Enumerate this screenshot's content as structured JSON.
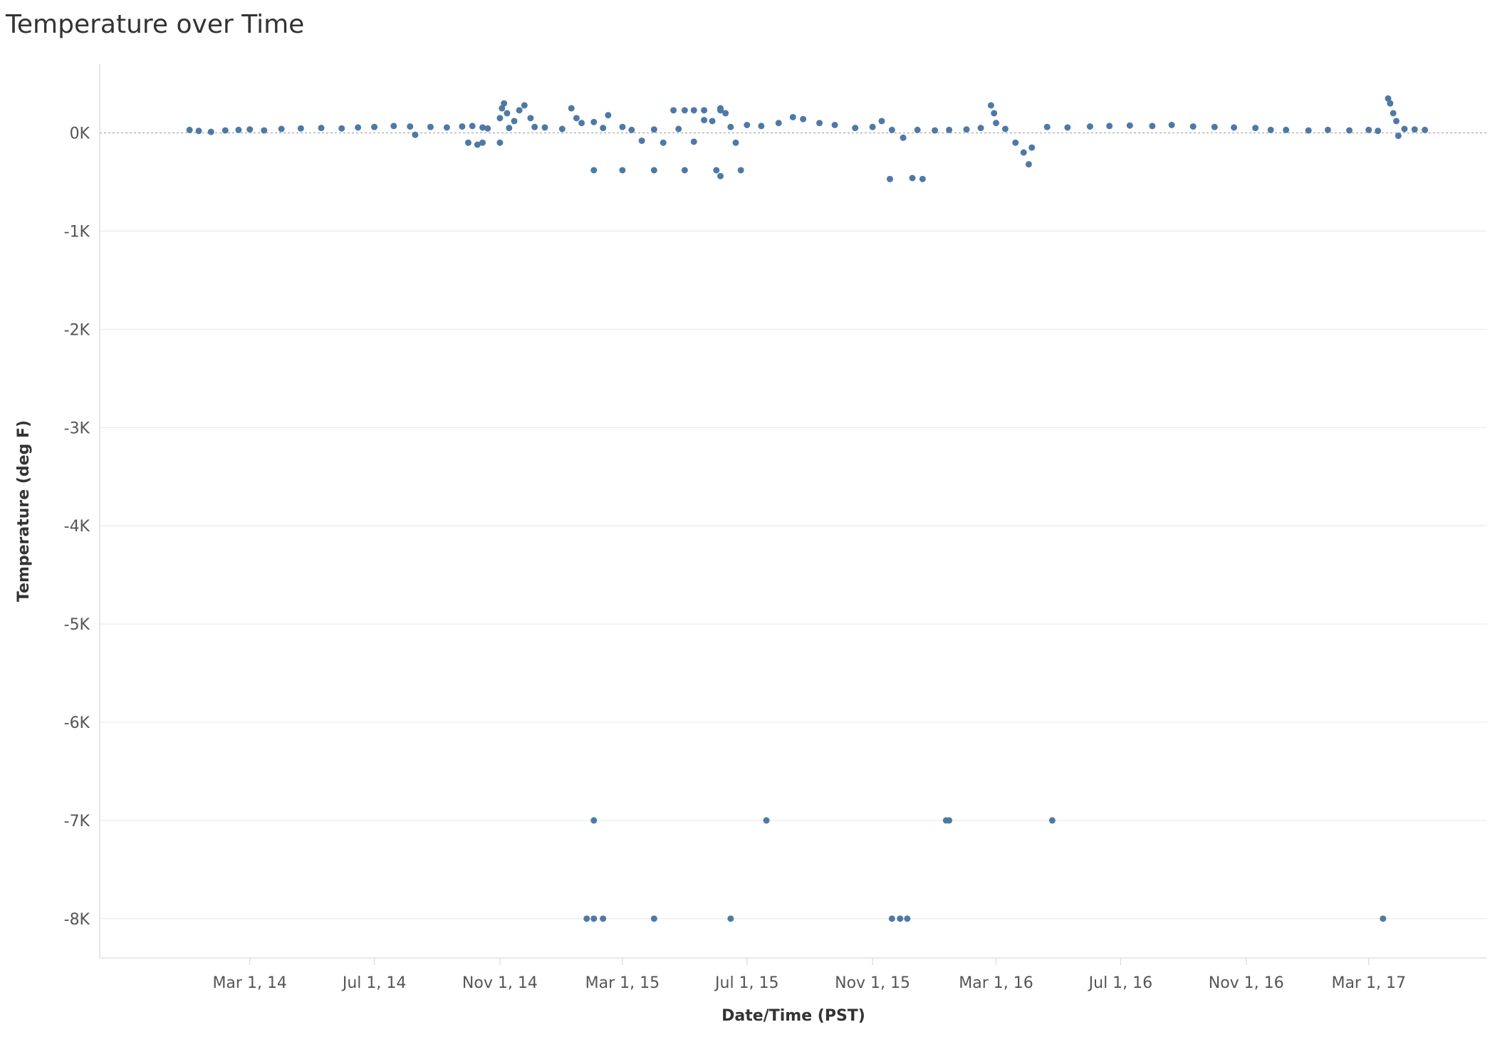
{
  "chart_data": {
    "type": "scatter",
    "title": "Temperature over Time",
    "xlabel": "Date/Time (PST)",
    "ylabel": "Temperature (deg F)",
    "xlim": [
      "2013-10-05",
      "2017-06-25"
    ],
    "ylim": [
      -8400,
      700
    ],
    "x_tick_values": [
      "2014-03-01",
      "2014-07-01",
      "2014-11-01",
      "2015-03-01",
      "2015-07-01",
      "2015-11-01",
      "2016-03-01",
      "2016-07-01",
      "2016-11-01",
      "2017-03-01"
    ],
    "x_tick_labels": [
      "Mar 1, 14",
      "Jul 1, 14",
      "Nov 1, 14",
      "Mar 1, 15",
      "Jul 1, 15",
      "Nov 1, 15",
      "Mar 1, 16",
      "Jul 1, 16",
      "Nov 1, 16",
      "Mar 1, 17"
    ],
    "y_tick_values": [
      0,
      -1000,
      -2000,
      -3000,
      -4000,
      -5000,
      -6000,
      -7000,
      -8000
    ],
    "y_tick_labels": [
      "0K",
      "-1K",
      "-2K",
      "-3K",
      "-4K",
      "-5K",
      "-6K",
      "-7K",
      "-8K"
    ],
    "grid": true,
    "zero_line": "dashed",
    "marker_color": "#4e79a7",
    "series": [
      {
        "points": [
          [
            "2014-01-01",
            30
          ],
          [
            "2014-01-10",
            20
          ],
          [
            "2014-01-22",
            10
          ],
          [
            "2014-02-05",
            25
          ],
          [
            "2014-02-18",
            30
          ],
          [
            "2014-03-01",
            35
          ],
          [
            "2014-03-15",
            25
          ],
          [
            "2014-04-01",
            40
          ],
          [
            "2014-04-20",
            45
          ],
          [
            "2014-05-10",
            50
          ],
          [
            "2014-05-30",
            45
          ],
          [
            "2014-06-15",
            55
          ],
          [
            "2014-07-01",
            60
          ],
          [
            "2014-07-20",
            70
          ],
          [
            "2014-08-05",
            65
          ],
          [
            "2014-08-10",
            -20
          ],
          [
            "2014-08-25",
            60
          ],
          [
            "2014-09-10",
            55
          ],
          [
            "2014-09-25",
            65
          ],
          [
            "2014-10-05",
            70
          ],
          [
            "2014-10-15",
            55
          ],
          [
            "2014-10-20",
            45
          ],
          [
            "2014-11-01",
            150
          ],
          [
            "2014-11-03",
            250
          ],
          [
            "2014-11-05",
            300
          ],
          [
            "2014-11-08",
            200
          ],
          [
            "2014-11-10",
            50
          ],
          [
            "2014-11-15",
            120
          ],
          [
            "2014-11-20",
            230
          ],
          [
            "2014-11-25",
            280
          ],
          [
            "2014-12-01",
            150
          ],
          [
            "2014-12-05",
            60
          ],
          [
            "2014-12-15",
            55
          ],
          [
            "2015-01-01",
            40
          ],
          [
            "2015-01-10",
            250
          ],
          [
            "2015-01-15",
            150
          ],
          [
            "2015-01-20",
            100
          ],
          [
            "2015-02-01",
            110
          ],
          [
            "2015-02-10",
            50
          ],
          [
            "2015-02-15",
            180
          ],
          [
            "2015-03-01",
            60
          ],
          [
            "2015-03-10",
            30
          ],
          [
            "2015-03-20",
            -80
          ],
          [
            "2015-04-01",
            35
          ],
          [
            "2015-04-10",
            -100
          ],
          [
            "2015-04-25",
            40
          ],
          [
            "2015-05-10",
            -90
          ],
          [
            "2015-05-20",
            130
          ],
          [
            "2015-05-28",
            120
          ],
          [
            "2015-06-05",
            250
          ],
          [
            "2015-06-10",
            200
          ],
          [
            "2015-06-15",
            60
          ],
          [
            "2015-06-20",
            -100
          ],
          [
            "2015-07-01",
            80
          ],
          [
            "2015-07-15",
            70
          ],
          [
            "2015-08-01",
            100
          ],
          [
            "2015-08-15",
            160
          ],
          [
            "2015-08-25",
            140
          ],
          [
            "2015-09-10",
            100
          ],
          [
            "2015-09-25",
            80
          ],
          [
            "2015-10-15",
            50
          ],
          [
            "2015-11-01",
            60
          ],
          [
            "2015-11-10",
            120
          ],
          [
            "2015-11-20",
            30
          ],
          [
            "2015-12-01",
            -50
          ],
          [
            "2015-12-15",
            30
          ],
          [
            "2016-01-01",
            25
          ],
          [
            "2016-01-15",
            30
          ],
          [
            "2016-02-01",
            35
          ],
          [
            "2016-02-15",
            50
          ],
          [
            "2016-02-25",
            280
          ],
          [
            "2016-02-28",
            200
          ],
          [
            "2016-03-01",
            100
          ],
          [
            "2016-03-10",
            40
          ],
          [
            "2016-03-20",
            -100
          ],
          [
            "2016-03-28",
            -200
          ],
          [
            "2016-04-02",
            -320
          ],
          [
            "2016-04-05",
            -150
          ],
          [
            "2016-04-20",
            60
          ],
          [
            "2016-05-10",
            55
          ],
          [
            "2016-06-01",
            65
          ],
          [
            "2016-06-20",
            70
          ],
          [
            "2016-07-10",
            75
          ],
          [
            "2016-08-01",
            70
          ],
          [
            "2016-08-20",
            80
          ],
          [
            "2016-09-10",
            65
          ],
          [
            "2016-10-01",
            60
          ],
          [
            "2016-10-20",
            55
          ],
          [
            "2016-11-10",
            50
          ],
          [
            "2016-11-25",
            30
          ],
          [
            "2016-12-10",
            30
          ],
          [
            "2017-01-01",
            25
          ],
          [
            "2017-01-20",
            30
          ],
          [
            "2017-02-10",
            25
          ],
          [
            "2017-03-01",
            30
          ],
          [
            "2017-03-10",
            20
          ],
          [
            "2017-03-20",
            350
          ],
          [
            "2017-03-22",
            300
          ],
          [
            "2017-03-25",
            200
          ],
          [
            "2017-03-28",
            120
          ],
          [
            "2017-03-30",
            -30
          ],
          [
            "2017-04-05",
            40
          ],
          [
            "2017-04-15",
            35
          ],
          [
            "2017-04-25",
            30
          ],
          [
            "2014-10-01",
            -100
          ],
          [
            "2014-10-15",
            -100
          ],
          [
            "2014-11-01",
            -100
          ],
          [
            "2014-10-10",
            -120
          ],
          [
            "2015-02-01",
            -380
          ],
          [
            "2015-03-01",
            -380
          ],
          [
            "2015-04-01",
            -380
          ],
          [
            "2015-05-01",
            -380
          ],
          [
            "2015-06-01",
            -380
          ],
          [
            "2015-06-25",
            -380
          ],
          [
            "2015-06-05",
            -440
          ],
          [
            "2015-11-18",
            -470
          ],
          [
            "2015-12-10",
            -460
          ],
          [
            "2015-12-20",
            -470
          ],
          [
            "2015-02-01",
            -7000
          ],
          [
            "2015-07-20",
            -7000
          ],
          [
            "2016-01-12",
            -7000
          ],
          [
            "2016-01-15",
            -7000
          ],
          [
            "2016-04-25",
            -7000
          ],
          [
            "2015-01-25",
            -8000
          ],
          [
            "2015-02-01",
            -8000
          ],
          [
            "2015-02-10",
            -8000
          ],
          [
            "2015-04-01",
            -8000
          ],
          [
            "2015-06-15",
            -8000
          ],
          [
            "2015-11-20",
            -8000
          ],
          [
            "2015-11-28",
            -8000
          ],
          [
            "2015-12-05",
            -8000
          ],
          [
            "2017-03-15",
            -8000
          ],
          [
            "2015-05-01",
            230
          ],
          [
            "2015-05-10",
            230
          ],
          [
            "2015-05-20",
            230
          ],
          [
            "2015-06-05",
            230
          ],
          [
            "2015-04-20",
            230
          ]
        ]
      }
    ]
  }
}
